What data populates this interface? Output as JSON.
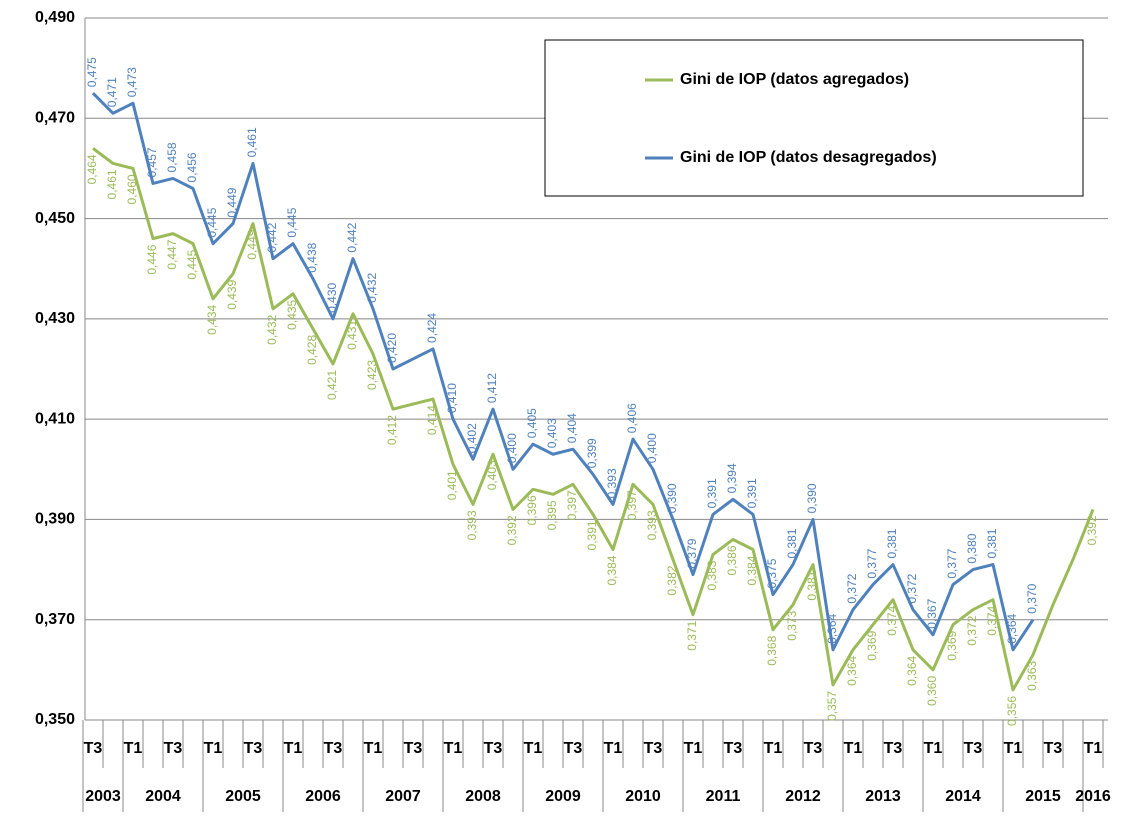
{
  "chart_data": {
    "type": "line",
    "categories": [
      "T3",
      null,
      "T1",
      null,
      "T3",
      null,
      "T1",
      null,
      "T3",
      null,
      "T1",
      null,
      "T3",
      null,
      "T1",
      null,
      "T3",
      null,
      "T1",
      null,
      "T3",
      null,
      "T1",
      null,
      "T3",
      null,
      "T1",
      null,
      "T3",
      null,
      "T1",
      null,
      "T3",
      null,
      "T1",
      null,
      "T3",
      null,
      "T1",
      null,
      "T3",
      null,
      "T1",
      null,
      "T3",
      null,
      "T1",
      null,
      "T3",
      null,
      "T1"
    ],
    "years": [
      "2003",
      "2004",
      "2005",
      "2006",
      "2007",
      "2008",
      "2009",
      "2010",
      "2011",
      "2012",
      "2013",
      "2014",
      "2015",
      "2016"
    ],
    "ylim": [
      0.35,
      0.49
    ],
    "yticks": [
      {
        "value": 0.35,
        "label": "0,350"
      },
      {
        "value": 0.37,
        "label": "0,370"
      },
      {
        "value": 0.39,
        "label": "0,390"
      },
      {
        "value": 0.41,
        "label": "0,410"
      },
      {
        "value": 0.43,
        "label": "0,430"
      },
      {
        "value": 0.45,
        "label": "0,450"
      },
      {
        "value": 0.47,
        "label": "0,470"
      },
      {
        "value": 0.49,
        "label": "0,490"
      }
    ],
    "grid": true,
    "legend": "top-right",
    "series": [
      {
        "name": "Gini de IOP (datos agregados)",
        "color": "#9bbb59",
        "values": [
          0.464,
          0.461,
          0.46,
          0.446,
          0.447,
          0.445,
          0.434,
          0.439,
          0.449,
          0.432,
          0.435,
          0.428,
          0.421,
          0.431,
          0.423,
          0.412,
          0.413,
          0.414,
          0.401,
          0.393,
          0.403,
          0.392,
          0.396,
          0.395,
          0.397,
          0.391,
          0.384,
          0.397,
          0.393,
          0.382,
          0.371,
          0.383,
          0.386,
          0.384,
          0.368,
          0.373,
          0.381,
          0.357,
          0.364,
          0.369,
          0.374,
          0.364,
          0.36,
          0.369,
          0.372,
          0.374,
          0.356,
          0.363,
          0.373,
          0.382,
          0.392
        ],
        "value_labels": [
          "0,464",
          "0,461",
          "0,460",
          "0,446",
          "0,447",
          "0,445",
          "0,434",
          "0,439",
          "0,449",
          "0,432",
          "0,435",
          "0,428",
          "0,421",
          "0,431",
          "0,423",
          "0,412",
          null,
          "0,414",
          "0,401",
          "0,393",
          "0,403",
          "0,392",
          "0,396",
          "0,395",
          "0,397",
          "0,391",
          "0,384",
          "0,397",
          "0,393",
          "0,382",
          "0,371",
          "0,383",
          "0,386",
          "0,384",
          "0,368",
          "0,373",
          "0,381",
          "0,357",
          "0,364",
          "0,369",
          "0,374",
          "0,364",
          "0,360",
          "0,369",
          "0,372",
          "0,374",
          "0,356",
          "0,363",
          null,
          null,
          "0,392"
        ]
      },
      {
        "name": "Gini de IOP (datos desagregados)",
        "color": "#4f81bd",
        "values": [
          0.475,
          0.471,
          0.473,
          0.457,
          0.458,
          0.456,
          0.445,
          0.449,
          0.461,
          0.442,
          0.445,
          0.438,
          0.43,
          0.442,
          0.432,
          0.42,
          0.422,
          0.424,
          0.41,
          0.402,
          0.412,
          0.4,
          0.405,
          0.403,
          0.404,
          0.399,
          0.393,
          0.406,
          0.4,
          0.39,
          0.379,
          0.391,
          0.394,
          0.391,
          0.375,
          0.381,
          0.39,
          0.364,
          0.372,
          0.377,
          0.381,
          0.372,
          0.367,
          0.377,
          0.38,
          0.381,
          0.364,
          0.37,
          null,
          null,
          null
        ],
        "value_labels": [
          "0,475",
          "0,471",
          "0,473",
          "0,457",
          "0,458",
          "0,456",
          "0,445",
          "0,449",
          "0,461",
          "0,442",
          "0,445",
          "0,438",
          "0,430",
          "0,442",
          "0,432",
          "0,420",
          null,
          "0,424",
          "0,410",
          "0,402",
          "0,412",
          "0,400",
          "0,405",
          "0,403",
          "0,404",
          "0,399",
          "0,393",
          "0,406",
          "0,400",
          "0,390",
          "0,379",
          "0,391",
          "0,394",
          "0,391",
          "0,375",
          "0,381",
          "0,390",
          "0,364",
          "0,372",
          "0,377",
          "0,381",
          "0,372",
          "0,367",
          "0,377",
          "0,380",
          "0,381",
          "0,364",
          "0,370",
          null,
          null,
          null
        ]
      }
    ]
  }
}
